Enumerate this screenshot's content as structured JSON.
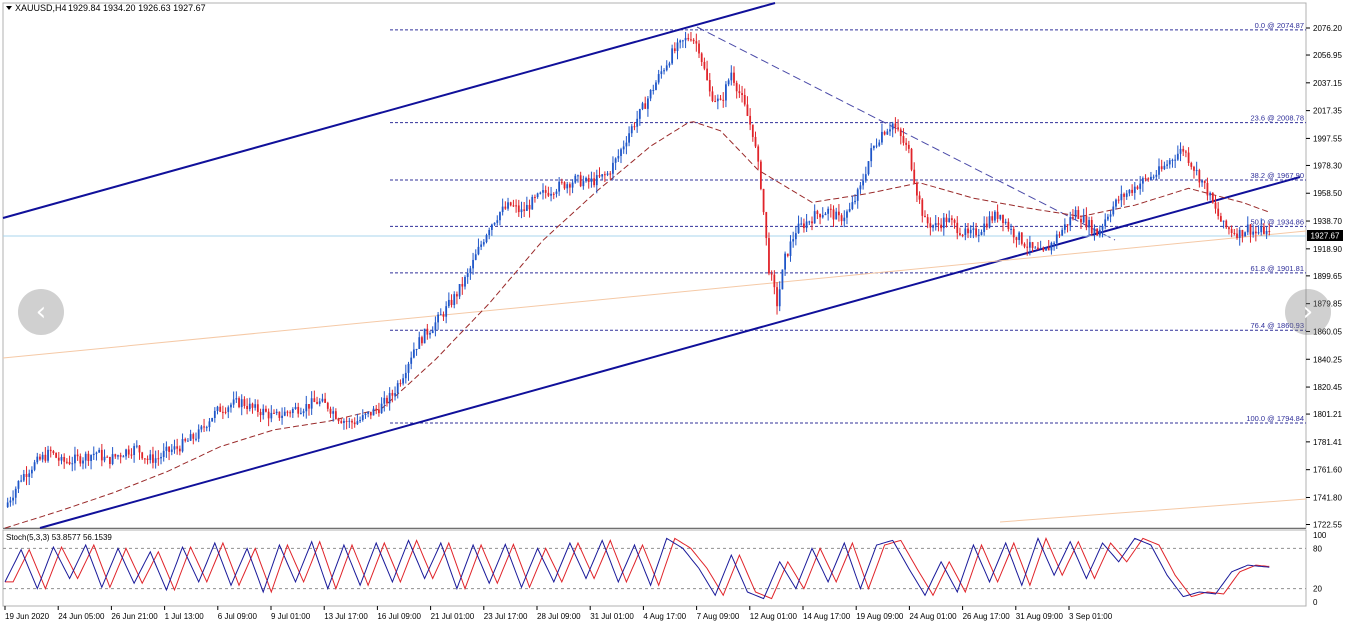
{
  "header": {
    "symbol": "XAUUSD,H4",
    "ohlc": "1929.84 1934.20 1926.63 1927.67"
  },
  "chart_data": [
    {
      "type": "candlestick",
      "title": "",
      "ylim": [
        1715,
        2085
      ],
      "y_ticks": [
        "2076.20",
        "2056.95",
        "2037.15",
        "2017.35",
        "1997.55",
        "1978.30",
        "1958.50",
        "1938.70",
        "1918.90",
        "1899.65",
        "1879.85",
        "1860.05",
        "1840.25",
        "1820.45",
        "1801.21",
        "1781.41",
        "1761.60",
        "1741.80",
        "1722.55"
      ],
      "current_price": "1927.67",
      "x_ticks": [
        "19 Jun 2020",
        "24 Jun 05:00",
        "26 Jun 21:00",
        "1 Jul 13:00",
        "6 Jul 09:00",
        "9 Jul 01:00",
        "13 Jul 17:00",
        "16 Jul 09:00",
        "21 Jul 01:00",
        "23 Jul 17:00",
        "28 Jul 09:00",
        "31 Jul 01:00",
        "4 Aug 17:00",
        "7 Aug 09:00",
        "12 Aug 01:00",
        "14 Aug 17:00",
        "19 Aug 09:00",
        "24 Aug 01:00",
        "26 Aug 17:00",
        "31 Aug 09:00",
        "3 Sep 01:00"
      ],
      "fibonacci": [
        {
          "label": "0.0 @ 2074.87",
          "value": 2074.87
        },
        {
          "label": "23.6 @ 2008.78",
          "value": 2008.78
        },
        {
          "label": "38.2 @ 1967.90",
          "value": 1967.9
        },
        {
          "label": "50.0 @ 1934.86",
          "value": 1934.86
        },
        {
          "label": "61.8 @ 1901.81",
          "value": 1901.81
        },
        {
          "label": "76.4 @ 1860.93",
          "value": 1860.93
        },
        {
          "label": "100.0 @ 1794.84",
          "value": 1794.84
        }
      ],
      "price_path": [
        [
          0,
          1735
        ],
        [
          3,
          1745
        ],
        [
          6,
          1756
        ],
        [
          10,
          1764
        ],
        [
          14,
          1770
        ],
        [
          17,
          1774
        ],
        [
          21,
          1767
        ],
        [
          25,
          1768
        ],
        [
          30,
          1771
        ],
        [
          34,
          1774
        ],
        [
          38,
          1768
        ],
        [
          42,
          1772
        ],
        [
          45,
          1775
        ],
        [
          49,
          1777
        ],
        [
          53,
          1769
        ],
        [
          57,
          1770
        ],
        [
          60,
          1774
        ],
        [
          64,
          1777
        ],
        [
          68,
          1782
        ],
        [
          72,
          1787
        ],
        [
          76,
          1798
        ],
        [
          80,
          1805
        ],
        [
          84,
          1808
        ],
        [
          88,
          1810
        ],
        [
          92,
          1805
        ],
        [
          96,
          1803
        ],
        [
          100,
          1799
        ],
        [
          104,
          1802
        ],
        [
          108,
          1805
        ],
        [
          112,
          1807
        ],
        [
          116,
          1810
        ],
        [
          120,
          1807
        ],
        [
          124,
          1799
        ],
        [
          128,
          1795
        ],
        [
          132,
          1797
        ],
        [
          136,
          1802
        ],
        [
          140,
          1807
        ],
        [
          144,
          1815
        ],
        [
          148,
          1830
        ],
        [
          152,
          1848
        ],
        [
          156,
          1858
        ],
        [
          160,
          1866
        ],
        [
          164,
          1876
        ],
        [
          168,
          1887
        ],
        [
          172,
          1900
        ],
        [
          176,
          1918
        ],
        [
          180,
          1935
        ],
        [
          184,
          1945
        ],
        [
          188,
          1950
        ],
        [
          192,
          1945
        ],
        [
          196,
          1952
        ],
        [
          200,
          1958
        ],
        [
          204,
          1962
        ],
        [
          208,
          1965
        ],
        [
          212,
          1968
        ],
        [
          216,
          1966
        ],
        [
          220,
          1968
        ],
        [
          224,
          1972
        ],
        [
          228,
          1985
        ],
        [
          232,
          2002
        ],
        [
          236,
          2015
        ],
        [
          240,
          2030
        ],
        [
          244,
          2045
        ],
        [
          248,
          2058
        ],
        [
          252,
          2066
        ],
        [
          255,
          2071
        ],
        [
          258,
          2062
        ],
        [
          262,
          2030
        ],
        [
          266,
          2022
        ],
        [
          270,
          2045
        ],
        [
          274,
          2025
        ],
        [
          278,
          2002
        ],
        [
          281,
          1965
        ],
        [
          284,
          1905
        ],
        [
          287,
          1880
        ],
        [
          290,
          1912
        ],
        [
          294,
          1932
        ],
        [
          298,
          1938
        ],
        [
          302,
          1944
        ],
        [
          306,
          1946
        ],
        [
          310,
          1940
        ],
        [
          314,
          1946
        ],
        [
          318,
          1962
        ],
        [
          322,
          1988
        ],
        [
          326,
          2002
        ],
        [
          330,
          2008
        ],
        [
          333,
          1998
        ],
        [
          336,
          1988
        ],
        [
          339,
          1960
        ],
        [
          342,
          1938
        ],
        [
          346,
          1935
        ],
        [
          350,
          1940
        ],
        [
          354,
          1934
        ],
        [
          358,
          1928
        ],
        [
          362,
          1932
        ],
        [
          366,
          1940
        ],
        [
          370,
          1944
        ],
        [
          374,
          1932
        ],
        [
          378,
          1925
        ],
        [
          382,
          1918
        ],
        [
          386,
          1915
        ],
        [
          390,
          1925
        ],
        [
          394,
          1935
        ],
        [
          398,
          1945
        ],
        [
          402,
          1938
        ],
        [
          406,
          1930
        ],
        [
          410,
          1944
        ],
        [
          414,
          1954
        ],
        [
          418,
          1960
        ],
        [
          422,
          1966
        ],
        [
          426,
          1970
        ],
        [
          430,
          1975
        ],
        [
          434,
          1984
        ],
        [
          438,
          1990
        ],
        [
          441,
          1980
        ],
        [
          444,
          1970
        ],
        [
          447,
          1960
        ],
        [
          450,
          1946
        ],
        [
          453,
          1935
        ],
        [
          456,
          1932
        ],
        [
          459,
          1930
        ],
        [
          462,
          1934
        ],
        [
          465,
          1930
        ],
        [
          468,
          1932
        ],
        [
          470,
          1928
        ]
      ],
      "ema_path": [
        [
          0,
          1720
        ],
        [
          20,
          1732
        ],
        [
          40,
          1745
        ],
        [
          60,
          1760
        ],
        [
          80,
          1778
        ],
        [
          100,
          1790
        ],
        [
          120,
          1796
        ],
        [
          140,
          1805
        ],
        [
          160,
          1840
        ],
        [
          180,
          1880
        ],
        [
          200,
          1925
        ],
        [
          220,
          1960
        ],
        [
          240,
          1992
        ],
        [
          255,
          2010
        ],
        [
          266,
          2003
        ],
        [
          280,
          1975
        ],
        [
          300,
          1952
        ],
        [
          320,
          1958
        ],
        [
          340,
          1966
        ],
        [
          360,
          1955
        ],
        [
          380,
          1948
        ],
        [
          400,
          1942
        ],
        [
          420,
          1950
        ],
        [
          440,
          1962
        ],
        [
          460,
          1952
        ],
        [
          470,
          1945
        ]
      ],
      "stoch_path": [
        [
          0,
          30
        ],
        [
          6,
          78
        ],
        [
          12,
          20
        ],
        [
          18,
          82
        ],
        [
          24,
          35
        ],
        [
          30,
          85
        ],
        [
          36,
          22
        ],
        [
          42,
          80
        ],
        [
          48,
          28
        ],
        [
          54,
          75
        ],
        [
          60,
          18
        ],
        [
          66,
          82
        ],
        [
          72,
          30
        ],
        [
          78,
          88
        ],
        [
          84,
          25
        ],
        [
          90,
          80
        ],
        [
          96,
          15
        ],
        [
          102,
          85
        ],
        [
          108,
          30
        ],
        [
          114,
          90
        ],
        [
          120,
          20
        ],
        [
          126,
          85
        ],
        [
          132,
          25
        ],
        [
          138,
          88
        ],
        [
          144,
          30
        ],
        [
          150,
          92
        ],
        [
          156,
          35
        ],
        [
          162,
          88
        ],
        [
          168,
          20
        ],
        [
          174,
          85
        ],
        [
          180,
          28
        ],
        [
          186,
          86
        ],
        [
          192,
          22
        ],
        [
          198,
          80
        ],
        [
          204,
          30
        ],
        [
          210,
          88
        ],
        [
          216,
          35
        ],
        [
          222,
          92
        ],
        [
          228,
          30
        ],
        [
          234,
          85
        ],
        [
          240,
          25
        ],
        [
          246,
          95
        ],
        [
          252,
          80
        ],
        [
          258,
          50
        ],
        [
          264,
          10
        ],
        [
          270,
          70
        ],
        [
          276,
          15
        ],
        [
          282,
          5
        ],
        [
          288,
          60
        ],
        [
          294,
          20
        ],
        [
          300,
          80
        ],
        [
          306,
          30
        ],
        [
          312,
          88
        ],
        [
          318,
          20
        ],
        [
          324,
          85
        ],
        [
          330,
          92
        ],
        [
          336,
          50
        ],
        [
          342,
          10
        ],
        [
          348,
          60
        ],
        [
          354,
          15
        ],
        [
          360,
          85
        ],
        [
          366,
          30
        ],
        [
          372,
          88
        ],
        [
          378,
          25
        ],
        [
          384,
          95
        ],
        [
          390,
          40
        ],
        [
          396,
          90
        ],
        [
          402,
          35
        ],
        [
          408,
          88
        ],
        [
          414,
          60
        ],
        [
          420,
          95
        ],
        [
          426,
          85
        ],
        [
          432,
          40
        ],
        [
          438,
          8
        ],
        [
          444,
          15
        ],
        [
          450,
          12
        ],
        [
          456,
          45
        ],
        [
          462,
          55
        ],
        [
          470,
          52
        ]
      ],
      "stoch_label": "Stoch(5,3,3) 53.8577 56.1539",
      "stoch_ticks": [
        "100",
        "80",
        "20",
        "0"
      ]
    }
  ],
  "nav": {
    "prev_icon": "chevron-left-icon",
    "next_icon": "chevron-right-icon"
  },
  "colors": {
    "bull": "#1f56c8",
    "bear": "#e0242a",
    "fib": "#30309a",
    "channel": "#10109a",
    "ema": "#9a2a2a"
  }
}
